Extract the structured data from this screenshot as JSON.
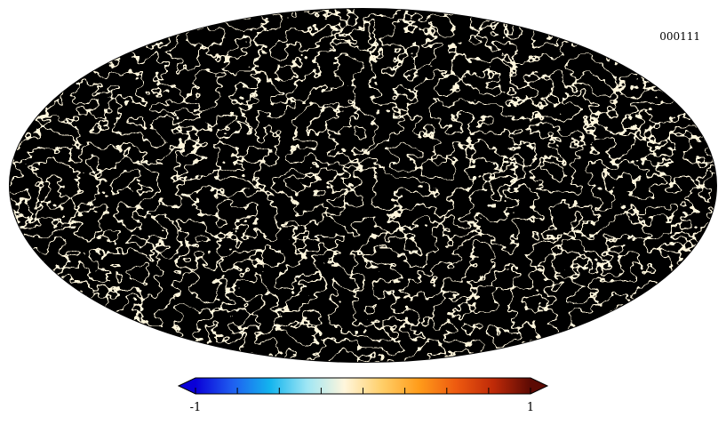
{
  "map": {
    "label": "000111",
    "projection": "mollweide",
    "colormap": [
      "#0a00d8",
      "#1f5ff0",
      "#13b4ee",
      "#9fe6f4",
      "#fff6dc",
      "#ffcf6a",
      "#ff9c1a",
      "#ee5a10",
      "#bf2a08",
      "#5c0a04"
    ],
    "outline_color": "#000000"
  },
  "colorbar": {
    "min_label": "-1",
    "max_label": "1",
    "tick_count": 9
  }
}
